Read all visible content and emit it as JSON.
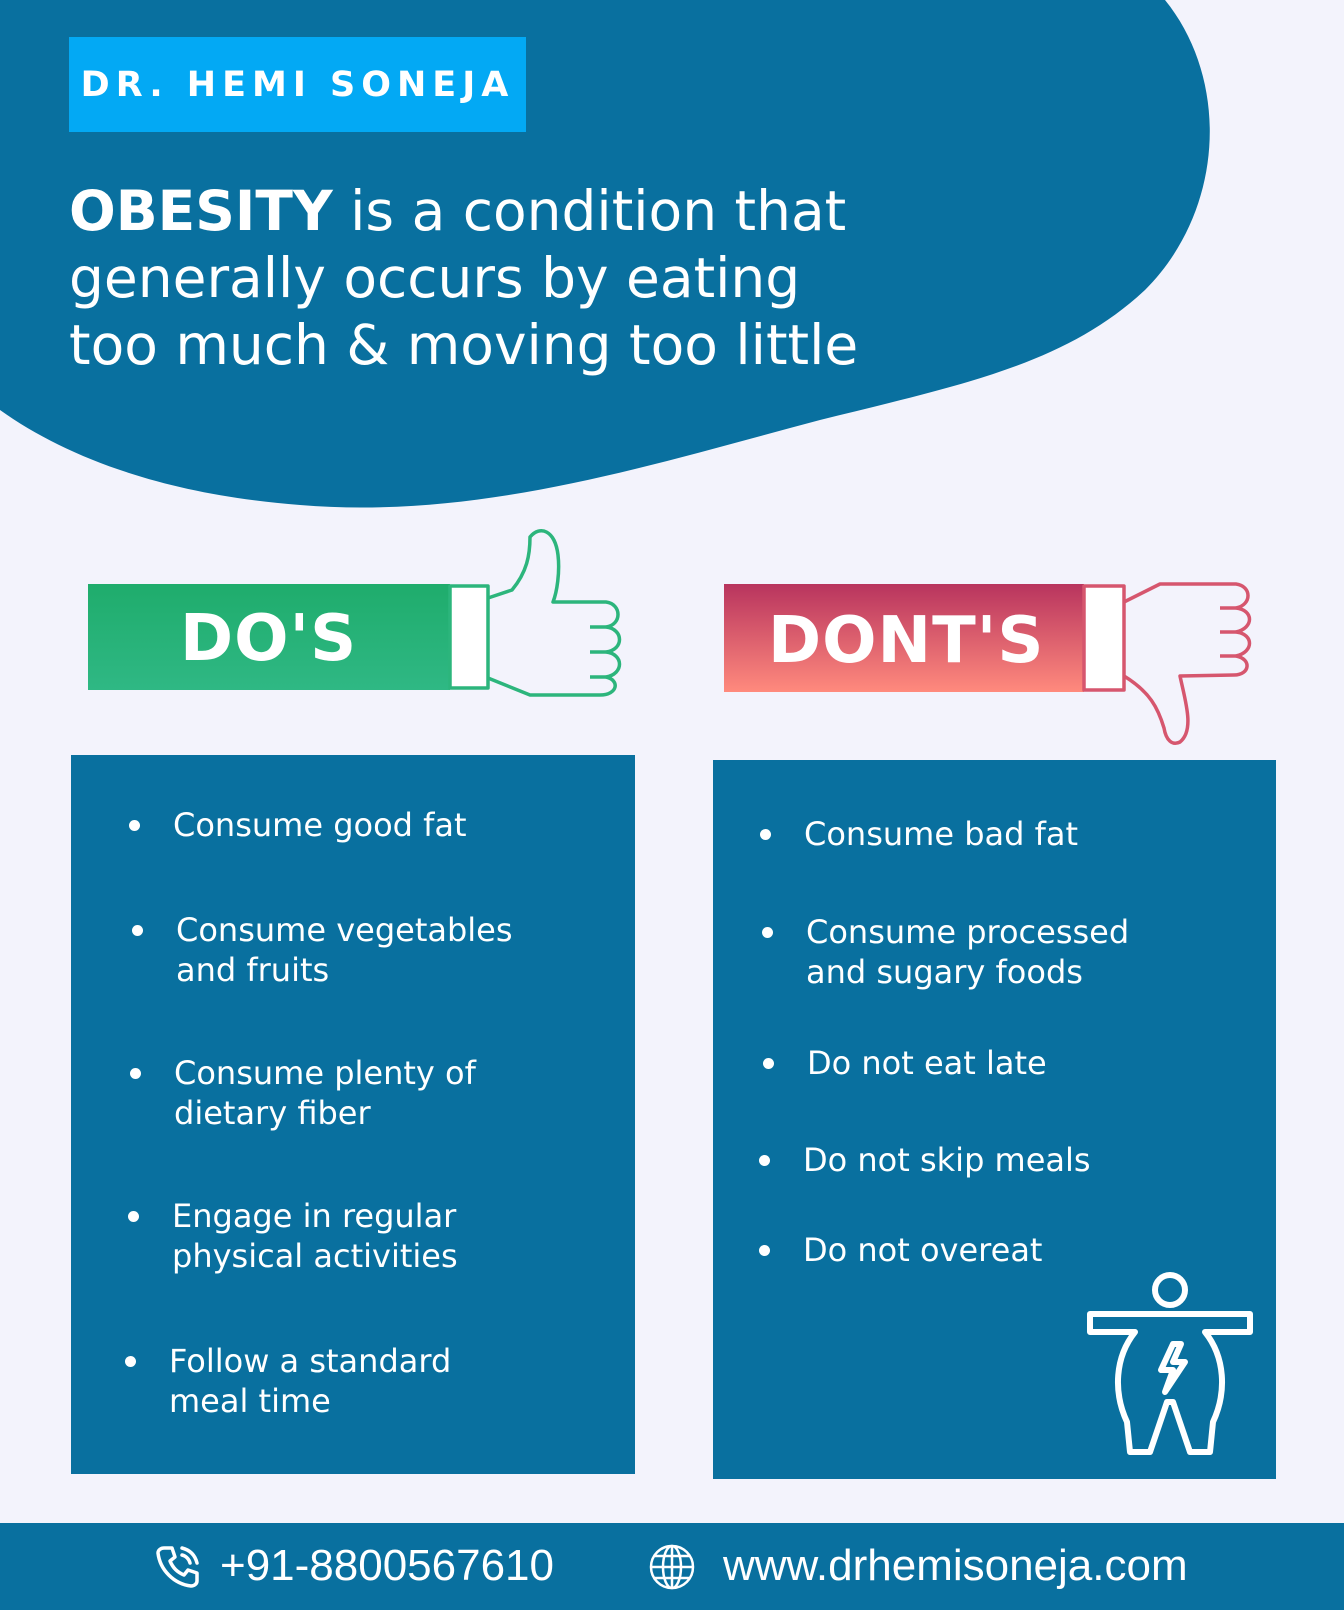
{
  "brand": {
    "name": "DR. HEMI SONEJA"
  },
  "headline": {
    "keyword": "OBESITY",
    "rest_line1": " is a condition that",
    "line2": "generally occurs by eating",
    "line3": "too much & moving too little"
  },
  "dos": {
    "title": "DO'S",
    "items": [
      {
        "line1": "Consume good fat",
        "line2": ""
      },
      {
        "line1": "Consume vegetables",
        "line2": "and fruits"
      },
      {
        "line1": "Consume plenty of",
        "line2": "dietary fiber"
      },
      {
        "line1": "Engage in regular",
        "line2": "physical activities"
      },
      {
        "line1": "Follow a standard",
        "line2": "meal time"
      }
    ]
  },
  "donts": {
    "title": "DONT'S",
    "items": [
      {
        "line1": "Consume bad fat",
        "line2": ""
      },
      {
        "line1": "Consume processed",
        "line2": "and sugary foods"
      },
      {
        "line1": "Do not eat late",
        "line2": ""
      },
      {
        "line1": "Do not skip meals",
        "line2": ""
      },
      {
        "line1": "Do not overeat",
        "line2": ""
      }
    ]
  },
  "footer": {
    "phone": "+91-8800567610",
    "website": "www.drhemisoneja.com"
  },
  "icons": {
    "thumbs_up": "thumbs-up-icon",
    "thumbs_down": "thumbs-down-icon",
    "obesity": "obese-body-icon",
    "phone": "phone-icon",
    "globe": "globe-icon"
  },
  "colors": {
    "primary_blue": "#09709f",
    "brand_blue": "#03a9f4",
    "background": "#f3f3fc",
    "do_green_top": "#1fac6c",
    "do_green_bottom": "#2fb884",
    "dont_red_top": "#b8345e",
    "dont_red_bottom": "#ff8a7d"
  }
}
